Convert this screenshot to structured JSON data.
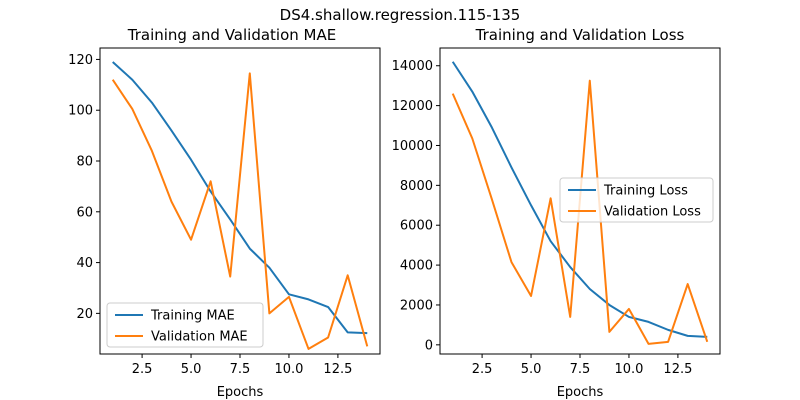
{
  "figure": {
    "suptitle": "DS4.shallow.regression.115-135"
  },
  "colors": {
    "training": "#1f77b4",
    "validation": "#ff7f0e"
  },
  "chart_data": [
    {
      "type": "line",
      "title": "Training and Validation MAE",
      "xlabel": "Epochs",
      "ylabel": "",
      "xlim": [
        0.35,
        14.65
      ],
      "ylim": [
        4.0,
        124.5
      ],
      "xticks": [
        2.5,
        5.0,
        7.5,
        10.0,
        12.5
      ],
      "xtick_labels": [
        "2.5",
        "5.0",
        "7.5",
        "10.0",
        "12.5"
      ],
      "yticks": [
        20,
        40,
        60,
        80,
        100,
        120
      ],
      "ytick_labels": [
        "20",
        "40",
        "60",
        "80",
        "100",
        "120"
      ],
      "x": [
        1,
        2,
        3,
        4,
        5,
        6,
        7,
        8,
        9,
        10,
        11,
        12,
        13,
        14
      ],
      "legend_location": "lower-left",
      "series": [
        {
          "name": "Training MAE",
          "color": "#1f77b4",
          "values": [
            119,
            112,
            103,
            92,
            80.5,
            68,
            57,
            45.5,
            38,
            27.5,
            25.5,
            22.5,
            12.5,
            12.2
          ]
        },
        {
          "name": "Validation MAE",
          "color": "#ff7f0e",
          "values": [
            112,
            100.5,
            84,
            64,
            49,
            72,
            34.5,
            114.5,
            20,
            26.5,
            6,
            10.5,
            35,
            7
          ]
        }
      ]
    },
    {
      "type": "line",
      "title": "Training and Validation Loss",
      "xlabel": "Epochs",
      "ylabel": "",
      "xlim": [
        0.35,
        14.65
      ],
      "ylim": [
        -460,
        14890
      ],
      "xticks": [
        2.5,
        5.0,
        7.5,
        10.0,
        12.5
      ],
      "xtick_labels": [
        "2.5",
        "5.0",
        "7.5",
        "10.0",
        "12.5"
      ],
      "yticks": [
        0,
        2000,
        4000,
        6000,
        8000,
        10000,
        12000,
        14000
      ],
      "ytick_labels": [
        "0",
        "2000",
        "4000",
        "6000",
        "8000",
        "10000",
        "12000",
        "14000"
      ],
      "x": [
        1,
        2,
        3,
        4,
        5,
        6,
        7,
        8,
        9,
        10,
        11,
        12,
        13,
        14
      ],
      "legend_location": "center-right",
      "series": [
        {
          "name": "Training Loss",
          "color": "#1f77b4",
          "values": [
            14200,
            12700,
            10900,
            8900,
            7000,
            5200,
            3900,
            2800,
            2000,
            1400,
            1150,
            750,
            450,
            400
          ]
        },
        {
          "name": "Validation Loss",
          "color": "#ff7f0e",
          "values": [
            12600,
            10350,
            7300,
            4150,
            2450,
            7350,
            1400,
            13250,
            650,
            1800,
            50,
            150,
            3050,
            150
          ]
        }
      ]
    }
  ]
}
